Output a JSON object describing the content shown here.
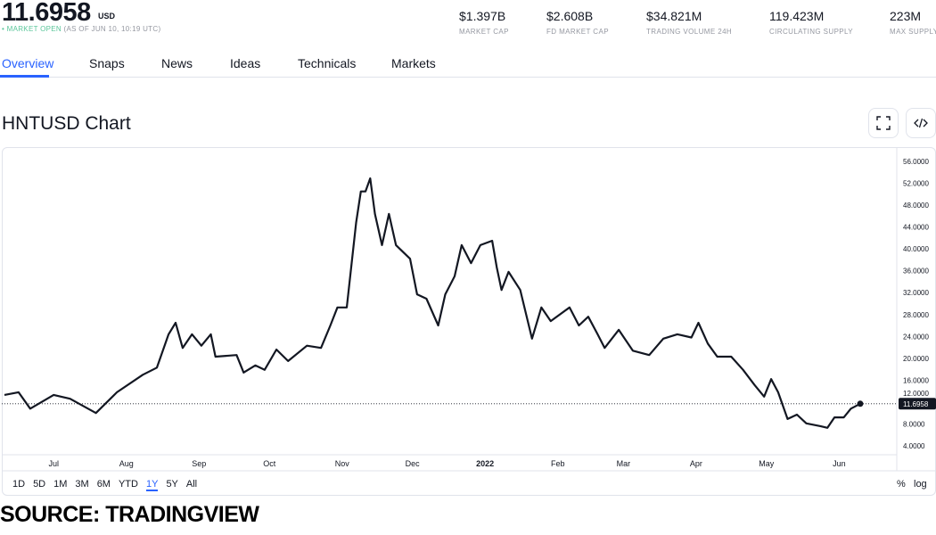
{
  "header": {
    "price": "11.6958",
    "currency": "USD",
    "market_status": "MARKET OPEN",
    "as_of": "(AS OF JUN 10, 10:19 UTC)",
    "stats": [
      {
        "value": "$1.397B",
        "label": "MARKET CAP"
      },
      {
        "value": "$2.608B",
        "label": "FD MARKET CAP"
      },
      {
        "value": "$34.821M",
        "label": "TRADING VOLUME 24H"
      },
      {
        "value": "119.423M",
        "label": "CIRCULATING SUPPLY"
      },
      {
        "value": "223M",
        "label": "MAX SUPPLY"
      }
    ]
  },
  "tabs": [
    "Overview",
    "Snaps",
    "News",
    "Ideas",
    "Technicals",
    "Markets"
  ],
  "active_tab": "Overview",
  "chart_title": "HNTUSD Chart",
  "icons": {
    "fullscreen": "fullscreen-icon",
    "embed": "code-embed-icon"
  },
  "ranges": [
    "1D",
    "5D",
    "1M",
    "3M",
    "6M",
    "YTD",
    "1Y",
    "5Y",
    "All"
  ],
  "active_range": "1Y",
  "scale_options": {
    "percent": "%",
    "log": "log"
  },
  "source": "SOURCE: TRADINGVIEW",
  "colors": {
    "accent": "#2962ff",
    "line": "#131722",
    "market_open": "#5ac69a"
  },
  "chart_data": {
    "type": "line",
    "symbol": "HNTUSD",
    "last_value": "11.6958",
    "ylim": [
      4,
      56
    ],
    "yticks": [
      "56.0000",
      "52.0000",
      "48.0000",
      "44.0000",
      "40.0000",
      "36.0000",
      "32.0000",
      "28.0000",
      "24.0000",
      "20.0000",
      "16.0000",
      "12.0000",
      "8.0000",
      "4.0000"
    ],
    "xlim": [
      "2021-06-10",
      "2022-06-10"
    ],
    "xticks": [
      {
        "label": "Jul",
        "date": "2021-07-01"
      },
      {
        "label": "Aug",
        "date": "2021-08-01"
      },
      {
        "label": "Sep",
        "date": "2021-09-01"
      },
      {
        "label": "Oct",
        "date": "2021-10-01"
      },
      {
        "label": "Nov",
        "date": "2021-11-01"
      },
      {
        "label": "Dec",
        "date": "2021-12-01"
      },
      {
        "label": "2022",
        "date": "2022-01-01"
      },
      {
        "label": "Feb",
        "date": "2022-02-01"
      },
      {
        "label": "Mar",
        "date": "2022-03-01"
      },
      {
        "label": "Apr",
        "date": "2022-04-01"
      },
      {
        "label": "May",
        "date": "2022-05-01"
      },
      {
        "label": "Jun",
        "date": "2022-06-01"
      }
    ],
    "grid": false,
    "axis_position": "right",
    "series": [
      {
        "x": [
          "2021-06-10",
          "2021-06-16",
          "2021-06-21",
          "2021-07-01",
          "2021-07-08",
          "2021-07-19",
          "2021-07-28",
          "2021-08-08",
          "2021-08-14",
          "2021-08-19",
          "2021-08-22",
          "2021-08-25",
          "2021-08-29",
          "2021-09-02",
          "2021-09-06",
          "2021-09-08",
          "2021-09-17",
          "2021-09-20",
          "2021-09-25",
          "2021-09-29",
          "2021-10-04",
          "2021-10-09",
          "2021-10-17",
          "2021-10-23",
          "2021-10-27",
          "2021-10-30",
          "2021-11-03",
          "2021-11-07",
          "2021-11-09",
          "2021-11-11",
          "2021-11-13",
          "2021-11-15",
          "2021-11-18",
          "2021-11-21",
          "2021-11-24",
          "2021-11-30",
          "2021-12-03",
          "2021-12-07",
          "2021-12-12",
          "2021-12-15",
          "2021-12-19",
          "2021-12-22",
          "2021-12-26",
          "2021-12-30",
          "2022-01-04",
          "2022-01-06",
          "2022-01-08",
          "2022-01-11",
          "2022-01-16",
          "2022-01-21",
          "2022-01-25",
          "2022-01-29",
          "2022-02-06",
          "2022-02-10",
          "2022-02-14",
          "2022-02-18",
          "2022-02-21",
          "2022-02-27",
          "2022-03-05",
          "2022-03-12",
          "2022-03-18",
          "2022-03-24",
          "2022-03-30",
          "2022-04-02",
          "2022-04-06",
          "2022-04-10",
          "2022-04-16",
          "2022-04-21",
          "2022-04-26",
          "2022-04-30",
          "2022-05-03",
          "2022-05-06",
          "2022-05-10",
          "2022-05-14",
          "2022-05-18",
          "2022-05-24",
          "2022-05-27",
          "2022-05-30",
          "2022-06-03",
          "2022-06-06",
          "2022-06-10"
        ],
        "y": [
          13.3,
          13.8,
          10.8,
          13.3,
          12.6,
          10.0,
          13.8,
          17.0,
          18.3,
          24.4,
          26.5,
          21.9,
          24.4,
          22.3,
          24.4,
          20.3,
          20.6,
          17.4,
          18.7,
          17.9,
          21.6,
          19.5,
          22.3,
          21.9,
          26.0,
          29.3,
          29.3,
          44.8,
          50.5,
          50.5,
          52.9,
          46.4,
          40.7,
          46.4,
          40.7,
          38.2,
          31.7,
          30.9,
          26.0,
          31.7,
          35.0,
          40.7,
          37.4,
          40.7,
          41.5,
          36.6,
          32.5,
          35.8,
          32.5,
          23.6,
          29.3,
          26.8,
          29.3,
          26.0,
          27.6,
          24.4,
          21.9,
          25.2,
          21.4,
          20.6,
          23.6,
          24.4,
          23.8,
          26.5,
          22.7,
          20.3,
          20.3,
          17.9,
          15.1,
          13.0,
          16.2,
          13.8,
          8.9,
          9.7,
          8.1,
          7.6,
          7.3,
          9.2,
          9.2,
          10.8,
          11.6958
        ]
      }
    ]
  }
}
